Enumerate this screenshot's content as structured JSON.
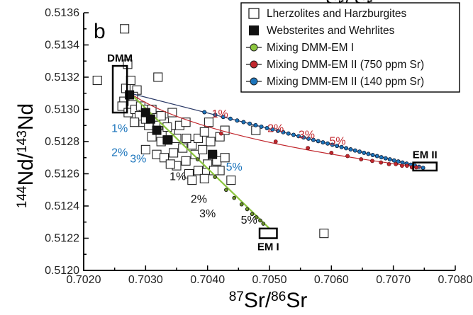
{
  "chart_data": {
    "type": "scatter",
    "panel_label": "b",
    "title_fragment": "Sr/ Sr",
    "xlabel": "87Sr/86Sr",
    "ylabel": "144Nd/143Nd",
    "xlim": [
      0.702,
      0.708
    ],
    "ylim": [
      0.512,
      0.5136
    ],
    "x_ticks": [
      "0.7020",
      "0.7030",
      "0.7040",
      "0.7050",
      "0.7060",
      "0.7070",
      "0.7080"
    ],
    "y_ticks": [
      "0.5120",
      "0.5122",
      "0.5124",
      "0.5126",
      "0.5128",
      "0.5130",
      "0.5132",
      "0.5134",
      "0.5136"
    ],
    "grid": false,
    "legend_position": "top-right",
    "legend": [
      {
        "label": "Lherzolites and Harzburgites",
        "marker": "open-square",
        "color": "#ffffff"
      },
      {
        "label": "Websterites and Wehrlites",
        "marker": "filled-square",
        "color": "#111111"
      },
      {
        "label": "Mixing DMM-EM I",
        "marker": "circle",
        "color": "#8cc63f"
      },
      {
        "label": "Mixing DMM-EM II (750 ppm Sr)",
        "marker": "circle",
        "color": "#c1272d"
      },
      {
        "label": "Mixing DMM-EM II (140 ppm Sr)",
        "marker": "circle",
        "color": "#1c75bc"
      }
    ],
    "series": [
      {
        "name": "Lherzolites and Harzburgites",
        "points": [
          [
            0.70222,
            0.51318
          ],
          [
            0.70266,
            0.5135
          ],
          [
            0.70271,
            0.51328
          ],
          [
            0.70268,
            0.51313
          ],
          [
            0.70276,
            0.51318
          ],
          [
            0.70286,
            0.51312
          ],
          [
            0.70265,
            0.51305
          ],
          [
            0.7028,
            0.51308
          ],
          [
            0.70262,
            0.51302
          ],
          [
            0.70272,
            0.51298
          ],
          [
            0.70283,
            0.513
          ],
          [
            0.70292,
            0.51302
          ],
          [
            0.703,
            0.513
          ],
          [
            0.7031,
            0.513
          ],
          [
            0.7032,
            0.5132
          ],
          [
            0.70296,
            0.51292
          ],
          [
            0.70305,
            0.5129
          ],
          [
            0.7032,
            0.5129
          ],
          [
            0.7033,
            0.51292
          ],
          [
            0.70343,
            0.51298
          ],
          [
            0.7031,
            0.51283
          ],
          [
            0.70325,
            0.5128
          ],
          [
            0.7034,
            0.51285
          ],
          [
            0.70355,
            0.5129
          ],
          [
            0.70365,
            0.51292
          ],
          [
            0.703,
            0.51275
          ],
          [
            0.70318,
            0.51272
          ],
          [
            0.7033,
            0.5127
          ],
          [
            0.70345,
            0.51273
          ],
          [
            0.7036,
            0.51276
          ],
          [
            0.70375,
            0.51278
          ],
          [
            0.70385,
            0.51282
          ],
          [
            0.70395,
            0.51286
          ],
          [
            0.70405,
            0.5128
          ],
          [
            0.7042,
            0.51283
          ],
          [
            0.7035,
            0.51265
          ],
          [
            0.70365,
            0.51268
          ],
          [
            0.7038,
            0.51272
          ],
          [
            0.70392,
            0.51275
          ],
          [
            0.70408,
            0.51271
          ],
          [
            0.7037,
            0.5126
          ],
          [
            0.70385,
            0.51262
          ],
          [
            0.704,
            0.51266
          ],
          [
            0.70415,
            0.51268
          ],
          [
            0.70428,
            0.5127
          ],
          [
            0.7034,
            0.51266
          ],
          [
            0.70375,
            0.51256
          ],
          [
            0.70395,
            0.51257
          ],
          [
            0.7042,
            0.51262
          ],
          [
            0.70438,
            0.51256
          ],
          [
            0.70428,
            0.51287
          ],
          [
            0.70478,
            0.51287
          ],
          [
            0.70588,
            0.51223
          ],
          [
            0.7029,
            0.51296
          ],
          [
            0.70282,
            0.51292
          ],
          [
            0.703,
            0.51294
          ],
          [
            0.70325,
            0.51296
          ],
          [
            0.70335,
            0.51289
          ],
          [
            0.7035,
            0.51282
          ],
          [
            0.70402,
            0.51292
          ],
          [
            0.70366,
            0.51282
          ],
          [
            0.7041,
            0.51262
          ]
        ]
      },
      {
        "name": "Websterites and Wehrlites",
        "points": [
          [
            0.70274,
            0.51309
          ],
          [
            0.703,
            0.51298
          ],
          [
            0.70308,
            0.51294
          ],
          [
            0.70318,
            0.51287
          ],
          [
            0.70336,
            0.51281
          ],
          [
            0.70335,
            0.51281
          ],
          [
            0.70408,
            0.51272
          ]
        ]
      },
      {
        "name": "Mixing DMM-EM I",
        "from": [
          0.70275,
          0.5131
        ],
        "to": [
          0.705,
          0.51226
        ],
        "dots": [
          [
            0.70384,
            0.51269
          ],
          [
            0.70412,
            0.51258
          ],
          [
            0.7043,
            0.5125
          ],
          [
            0.70443,
            0.51245
          ],
          [
            0.70455,
            0.51241
          ],
          [
            0.70464,
            0.51238
          ],
          [
            0.70472,
            0.51235
          ],
          [
            0.70479,
            0.51233
          ],
          [
            0.70485,
            0.51231
          ],
          [
            0.7049,
            0.51229
          ]
        ]
      },
      {
        "name": "Mixing DMM-EM II (750 ppm Sr)",
        "from": [
          0.70275,
          0.5131
        ],
        "to": [
          0.70745,
          0.51264
        ],
        "dots": [
          [
            0.70422,
            0.51285
          ],
          [
            0.7051,
            0.5128
          ],
          [
            0.70562,
            0.51276
          ],
          [
            0.706,
            0.51273
          ],
          [
            0.70626,
            0.51271
          ],
          [
            0.70648,
            0.51269
          ],
          [
            0.70666,
            0.51268
          ],
          [
            0.7068,
            0.51267
          ],
          [
            0.70693,
            0.51266
          ],
          [
            0.70704,
            0.51266
          ],
          [
            0.70714,
            0.51265
          ],
          [
            0.70722,
            0.51265
          ],
          [
            0.7073,
            0.51264
          ],
          [
            0.70737,
            0.51264
          ]
        ]
      },
      {
        "name": "Mixing DMM-EM II (140 ppm Sr)",
        "from": [
          0.70275,
          0.5131
        ],
        "to": [
          0.70745,
          0.51264
        ],
        "dots_from": 0.70395,
        "dots_to": 0.70748,
        "dots_count": 44
      }
    ],
    "end_members": [
      {
        "label": "DMM",
        "box": [
          0.70247,
          0.51298,
          0.7027,
          0.51327
        ]
      },
      {
        "label": "EM I",
        "box": [
          0.70484,
          0.5122,
          0.70512,
          0.51226
        ]
      },
      {
        "label": "EM II",
        "box": [
          0.70732,
          0.51262,
          0.7077,
          0.51267
        ]
      }
    ],
    "annotations": [
      {
        "text": "1%",
        "color": "#c1272d",
        "x": 0.7042,
        "y": 0.51295
      },
      {
        "text": "2%",
        "color": "#c1272d",
        "x": 0.7051,
        "y": 0.51286
      },
      {
        "text": "3%",
        "color": "#c1272d",
        "x": 0.7056,
        "y": 0.51282
      },
      {
        "text": "5%",
        "color": "#c1272d",
        "x": 0.7061,
        "y": 0.51278
      },
      {
        "text": "1%",
        "color": "#1c75bc",
        "x": 0.70258,
        "y": 0.51286
      },
      {
        "text": "2%",
        "color": "#1c75bc",
        "x": 0.70258,
        "y": 0.51271
      },
      {
        "text": "3%",
        "color": "#1c75bc",
        "x": 0.70288,
        "y": 0.51267
      },
      {
        "text": "5%",
        "color": "#1c75bc",
        "x": 0.70443,
        "y": 0.51262
      },
      {
        "text": "1%",
        "color": "#111111",
        "x": 0.70352,
        "y": 0.51256
      },
      {
        "text": "2%",
        "color": "#111111",
        "x": 0.70386,
        "y": 0.51242
      },
      {
        "text": "3%",
        "color": "#111111",
        "x": 0.704,
        "y": 0.51233
      },
      {
        "text": "5%",
        "color": "#111111",
        "x": 0.70467,
        "y": 0.51229
      }
    ]
  }
}
